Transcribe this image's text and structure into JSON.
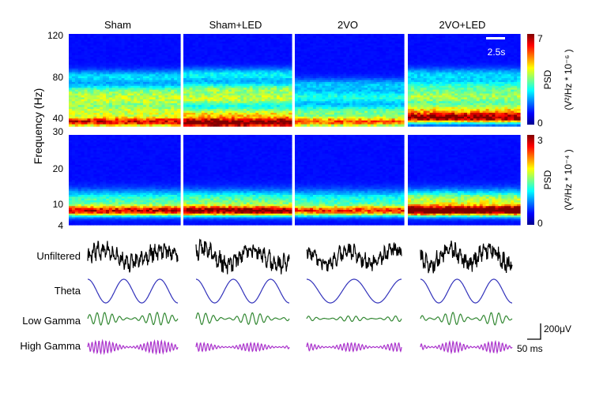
{
  "chart_data": [
    {
      "type": "heatmap",
      "panel": "spectrogram-high-frequency",
      "ylabel": "Frequency (Hz)",
      "yticks": [
        120,
        80,
        40,
        30
      ],
      "ylim": [
        30,
        120
      ],
      "conditions": [
        "Sham",
        "Sham+LED",
        "2VO",
        "2VO+LED"
      ],
      "colorbar": {
        "label": "PSD",
        "unit": "(V²/Hz * 10⁻⁶ )",
        "min": 0,
        "max": 7,
        "min_label": "0",
        "max_label": "7"
      },
      "time_scale_label": "2.5s",
      "band_peak_hz": [
        {
          "condition": "Sham",
          "bands": [
            {
              "freq": 34,
              "psd": 5.5
            },
            {
              "freq": 44,
              "psd": 3.2
            },
            {
              "freq": 55,
              "psd": 2.8
            },
            {
              "freq": 64,
              "psd": 2.4
            },
            {
              "freq": 78,
              "psd": 1.6
            }
          ]
        },
        {
          "condition": "Sham+LED",
          "bands": [
            {
              "freq": 33,
              "psd": 6.6
            },
            {
              "freq": 42,
              "psd": 3.6
            },
            {
              "freq": 56,
              "psd": 3.0
            },
            {
              "freq": 66,
              "psd": 2.6
            },
            {
              "freq": 80,
              "psd": 1.8
            }
          ]
        },
        {
          "condition": "2VO",
          "bands": [
            {
              "freq": 34,
              "psd": 4.8
            },
            {
              "freq": 44,
              "psd": 2.6
            },
            {
              "freq": 58,
              "psd": 2.0
            },
            {
              "freq": 70,
              "psd": 1.4
            }
          ]
        },
        {
          "condition": "2VO+LED",
          "bands": [
            {
              "freq": 38,
              "psd": 6.0
            },
            {
              "freq": 46,
              "psd": 3.4
            },
            {
              "freq": 58,
              "psd": 2.8
            },
            {
              "freq": 68,
              "psd": 2.2
            },
            {
              "freq": 80,
              "psd": 1.5
            }
          ]
        }
      ]
    },
    {
      "type": "heatmap",
      "panel": "spectrogram-low-frequency",
      "ylabel": "Frequency (Hz)",
      "yticks": [
        30,
        20,
        10,
        4
      ],
      "ylim": [
        4,
        30
      ],
      "conditions": [
        "Sham",
        "Sham+LED",
        "2VO",
        "2VO+LED"
      ],
      "colorbar": {
        "label": "PSD",
        "unit": "(V²/Hz * 10⁻⁴ )",
        "min": 0,
        "max": 3,
        "min_label": "0",
        "max_label": "3"
      },
      "band_peak_hz": [
        {
          "condition": "Sham",
          "bands": [
            {
              "freq": 8,
              "psd": 2.3
            },
            {
              "freq": 11,
              "psd": 1.0
            }
          ]
        },
        {
          "condition": "Sham+LED",
          "bands": [
            {
              "freq": 8,
              "psd": 2.6
            },
            {
              "freq": 11,
              "psd": 1.1
            }
          ]
        },
        {
          "condition": "2VO",
          "bands": [
            {
              "freq": 8,
              "psd": 2.0
            },
            {
              "freq": 11,
              "psd": 0.9
            }
          ]
        },
        {
          "condition": "2VO+LED",
          "bands": [
            {
              "freq": 8,
              "psd": 2.9
            },
            {
              "freq": 11,
              "psd": 1.4
            }
          ]
        }
      ]
    },
    {
      "type": "line",
      "panel": "example-traces",
      "conditions": [
        "Sham",
        "Sham+LED",
        "2VO",
        "2VO+LED"
      ],
      "series": [
        {
          "name": "Unfiltered",
          "color": "#000000",
          "amplitude": [
            1.0,
            1.1,
            1.0,
            1.1
          ],
          "cycles": [
            0,
            0,
            0,
            0
          ]
        },
        {
          "name": "Theta",
          "color": "#3333bb",
          "amplitude": [
            1.0,
            1.0,
            1.0,
            1.0
          ],
          "cycles": [
            2.5,
            2.5,
            2.0,
            2.5
          ]
        },
        {
          "name": "Low Gamma",
          "color": "#338833",
          "amplitude": [
            0.8,
            0.75,
            0.35,
            0.8
          ],
          "cycles": [
            12,
            12,
            12,
            12
          ]
        },
        {
          "name": "High Gamma",
          "color": "#aa33cc",
          "amplitude": [
            0.9,
            0.6,
            0.6,
            0.8
          ],
          "cycles": [
            26,
            26,
            26,
            26
          ]
        }
      ],
      "scale_bar": {
        "amplitude_label": "200μV",
        "time_label": "50 ms"
      }
    }
  ],
  "colors": {
    "jet_low": "#00008f",
    "jet_high": "#800000"
  }
}
